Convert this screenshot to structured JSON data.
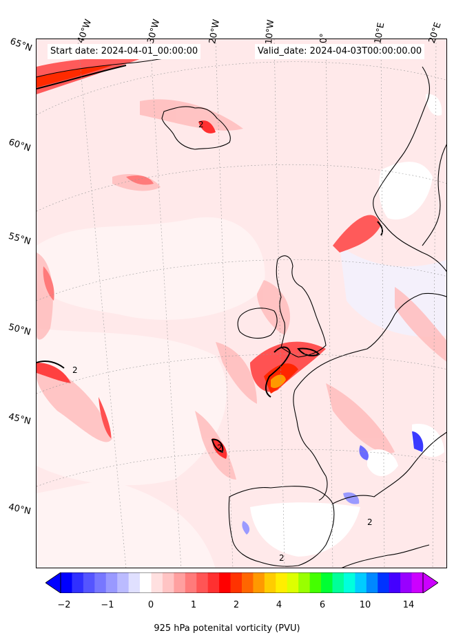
{
  "map": {
    "start_date": "Start date: 2024-04-01_00:00:00",
    "valid_date": "Valid_date: 2024-04-03T00:00:00.00",
    "longitude_labels": [
      "40°W",
      "30°W",
      "20°W",
      "10°W",
      "0°",
      "10°E",
      "20°E"
    ],
    "latitude_labels": [
      "65°N",
      "60°N",
      "55°N",
      "50°N",
      "45°N",
      "40°N"
    ],
    "contour_label": "2"
  },
  "colorbar": {
    "label": "925 hPa potenital vorticity (PVU)",
    "ticks": [
      "−2",
      "−1",
      "0",
      "1",
      "2",
      "4",
      "6",
      "10",
      "14"
    ],
    "colors": [
      "#0000ff",
      "#3030ff",
      "#5555ff",
      "#7777ff",
      "#9999ff",
      "#bbbbff",
      "#e0e0ff",
      "#ffffff",
      "#ffe0e0",
      "#ffc4c4",
      "#ffa0a0",
      "#ff7b7b",
      "#ff5555",
      "#ff3030",
      "#ff0000",
      "#ff3300",
      "#ff6600",
      "#ff9900",
      "#ffcc00",
      "#ffee00",
      "#ddff00",
      "#99ff00",
      "#44ff00",
      "#00ff33",
      "#00ff99",
      "#00ffdd",
      "#00ccff",
      "#0088ff",
      "#0033ff",
      "#4400ff",
      "#9900ff",
      "#cc00ff"
    ]
  }
}
